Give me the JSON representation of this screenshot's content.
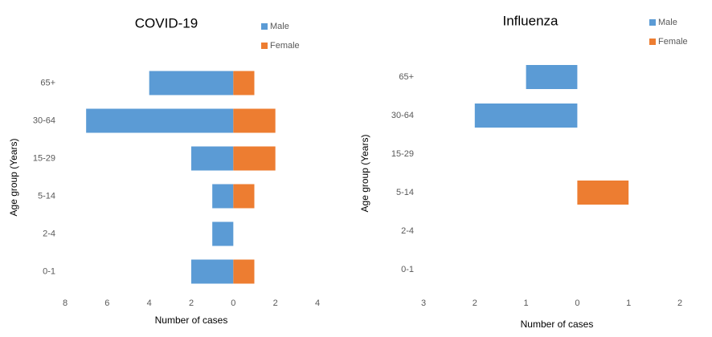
{
  "chart_data": [
    {
      "type": "bar",
      "orientation": "horizontal",
      "title": "COVID-19",
      "x_label": "Number of cases",
      "y_label": "Age group (Years)",
      "categories": [
        "65+",
        "30-64",
        "15-29",
        "5-14",
        "2-4",
        "0-1"
      ],
      "series": [
        {
          "name": "Male",
          "color": "#5b9bd5",
          "values": [
            -4,
            -7,
            -2,
            -1,
            -1,
            -2
          ]
        },
        {
          "name": "Female",
          "color": "#ed7d31",
          "values": [
            1,
            2,
            2,
            1,
            0,
            1
          ]
        }
      ],
      "xlim": [
        -8,
        4
      ],
      "xticks": [
        {
          "value": -8,
          "label": "8"
        },
        {
          "value": -6,
          "label": "6"
        },
        {
          "value": -4,
          "label": "4"
        },
        {
          "value": -2,
          "label": "2"
        },
        0,
        2,
        4
      ],
      "grid": false
    },
    {
      "type": "bar",
      "orientation": "horizontal",
      "title": "Influenza",
      "x_label": "Number of cases",
      "y_label": "Age group (Years)",
      "categories": [
        "65+",
        "30-64",
        "15-29",
        "5-14",
        "2-4",
        "0-1"
      ],
      "series": [
        {
          "name": "Male",
          "color": "#5b9bd5",
          "values": [
            -1,
            -2,
            0,
            0,
            0,
            0
          ]
        },
        {
          "name": "Female",
          "color": "#ed7d31",
          "values": [
            0,
            0,
            0,
            1,
            0,
            0
          ]
        }
      ],
      "xlim": [
        -3,
        2
      ],
      "xticks": [
        {
          "value": -3,
          "label": "3"
        },
        {
          "value": -2,
          "label": "2"
        },
        {
          "value": -1,
          "label": "1"
        },
        0,
        1,
        2
      ],
      "grid": false
    }
  ]
}
